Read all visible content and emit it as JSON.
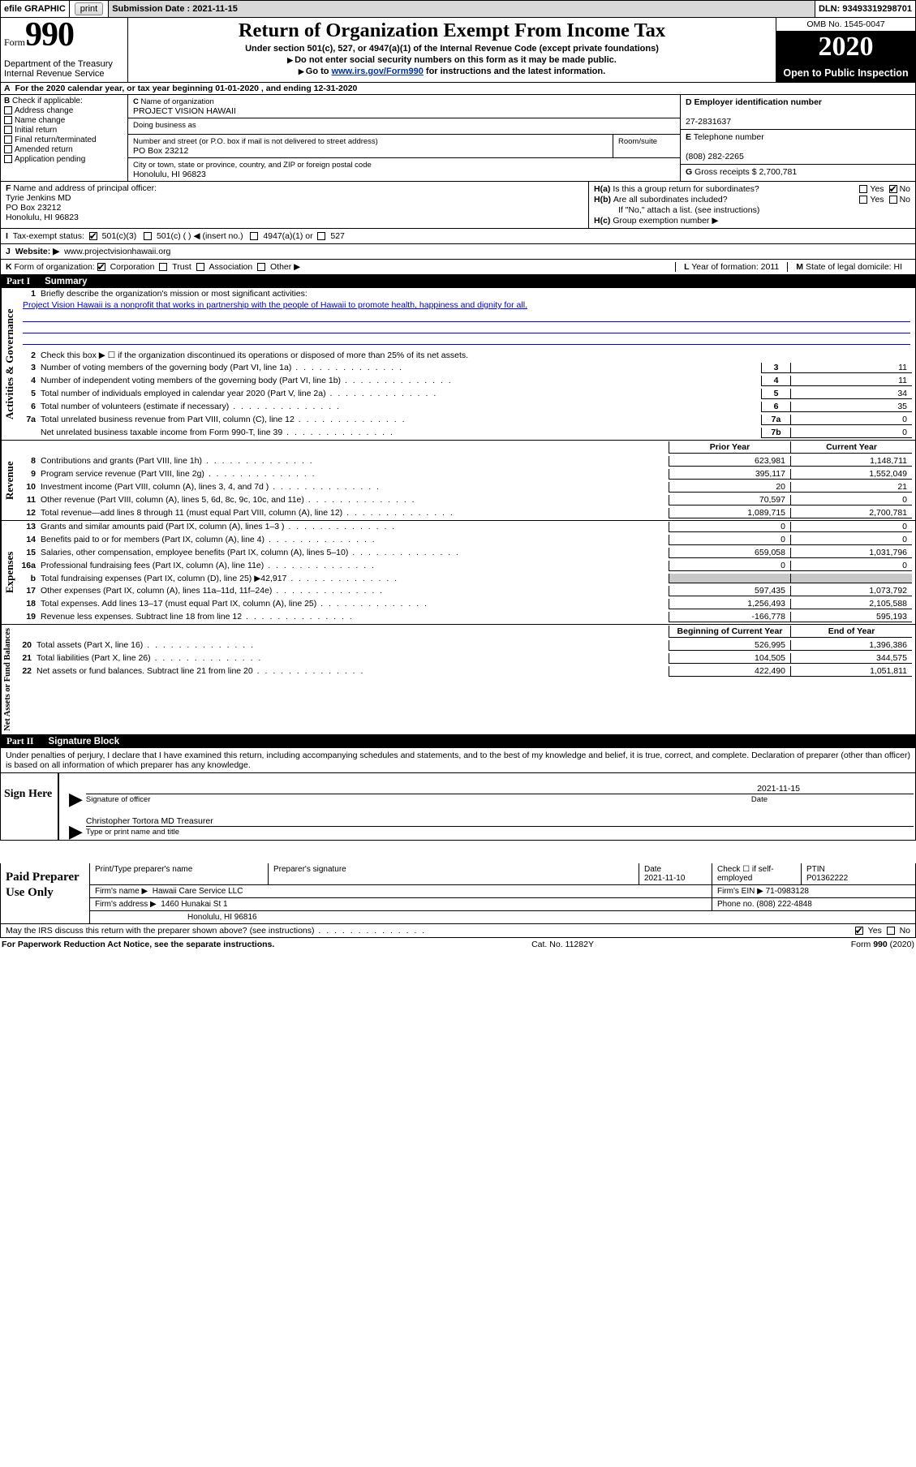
{
  "topbar": {
    "efile_label": "efile GRAPHIC",
    "print_btn": "print",
    "sub_label": "Submission Date :",
    "sub_date": "2021-11-15",
    "dln_label": "DLN:",
    "dln": "93493319298701"
  },
  "header": {
    "form_word": "Form",
    "form_num": "990",
    "dept": "Department of the Treasury\nInternal Revenue Service",
    "title": "Return of Organization Exempt From Income Tax",
    "subtitle": "Under section 501(c), 527, or 4947(a)(1) of the Internal Revenue Code (except private foundations)",
    "instr1": "Do not enter social security numbers on this form as it may be made public.",
    "instr2_pre": "Go to ",
    "instr2_link": "www.irs.gov/Form990",
    "instr2_post": " for instructions and the latest information.",
    "omb": "OMB No. 1545-0047",
    "year": "2020",
    "open": "Open to Public Inspection"
  },
  "lineA": "For the 2020 calendar year, or tax year beginning 01-01-2020   , and ending 12-31-2020",
  "boxB": {
    "label": "Check if applicable:",
    "opts": [
      "Address change",
      "Name change",
      "Initial return",
      "Final return/terminated",
      "Amended return",
      "Application pending"
    ]
  },
  "boxC": {
    "name_label": "Name of organization",
    "name": "PROJECT VISION HAWAII",
    "dba_label": "Doing business as",
    "addr_label": "Number and street (or P.O. box if mail is not delivered to street address)",
    "room_label": "Room/suite",
    "addr": "PO Box 23212",
    "city_label": "City or town, state or province, country, and ZIP or foreign postal code",
    "city": "Honolulu, HI  96823"
  },
  "boxD": {
    "label": "Employer identification number",
    "val": "27-2831637"
  },
  "boxE": {
    "label": "Telephone number",
    "val": "(808) 282-2265"
  },
  "boxG": {
    "label": "Gross receipts $",
    "val": "2,700,781"
  },
  "boxF": {
    "label": "Name and address of principal officer:",
    "name": "Tyrie Jenkins MD",
    "addr": "PO Box 23212",
    "city": "Honolulu, HI  96823"
  },
  "boxH": {
    "a": "Is this a group return for subordinates?",
    "b": "Are all subordinates included?",
    "bnote": "If \"No,\" attach a list. (see instructions)",
    "c": "Group exemption number ▶",
    "yes": "Yes",
    "no": "No"
  },
  "taxexempt": {
    "label": "Tax-exempt status:",
    "o1": "501(c)(3)",
    "o2": "501(c) (  ) ◀ (insert no.)",
    "o3": "4947(a)(1) or",
    "o4": "527"
  },
  "website": {
    "label": "Website: ▶",
    "val": "www.projectvisionhawaii.org"
  },
  "lineK": {
    "label": "Form of organization:",
    "opts": [
      "Corporation",
      "Trust",
      "Association",
      "Other ▶"
    ],
    "L": "Year of formation: 2011",
    "M": "State of legal domicile: HI"
  },
  "partI": {
    "title": "Summary",
    "sections": {
      "gov": "Activities & Governance",
      "rev": "Revenue",
      "exp": "Expenses",
      "net": "Net Assets or Fund Balances"
    },
    "q1": "Briefly describe the organization's mission or most significant activities:",
    "mission": "Project Vision Hawaii is a nonprofit that works in partnership with the people of Hawaii to promote health, happiness and dignity for all.",
    "q2": "Check this box ▶ ☐  if the organization discontinued its operations or disposed of more than 25% of its net assets.",
    "rows_single": [
      {
        "n": "3",
        "t": "Number of voting members of the governing body (Part VI, line 1a)",
        "box": "3",
        "v": "11"
      },
      {
        "n": "4",
        "t": "Number of independent voting members of the governing body (Part VI, line 1b)",
        "box": "4",
        "v": "11"
      },
      {
        "n": "5",
        "t": "Total number of individuals employed in calendar year 2020 (Part V, line 2a)",
        "box": "5",
        "v": "34"
      },
      {
        "n": "6",
        "t": "Total number of volunteers (estimate if necessary)",
        "box": "6",
        "v": "35"
      },
      {
        "n": "7a",
        "t": "Total unrelated business revenue from Part VIII, column (C), line 12",
        "box": "7a",
        "v": "0"
      },
      {
        "n": "",
        "t": "Net unrelated business taxable income from Form 990-T, line 39",
        "box": "7b",
        "v": "0"
      }
    ],
    "hdr_prior": "Prior Year",
    "hdr_curr": "Current Year",
    "rev_rows": [
      {
        "n": "8",
        "t": "Contributions and grants (Part VIII, line 1h)",
        "p": "623,981",
        "c": "1,148,711"
      },
      {
        "n": "9",
        "t": "Program service revenue (Part VIII, line 2g)",
        "p": "395,117",
        "c": "1,552,049"
      },
      {
        "n": "10",
        "t": "Investment income (Part VIII, column (A), lines 3, 4, and 7d )",
        "p": "20",
        "c": "21"
      },
      {
        "n": "11",
        "t": "Other revenue (Part VIII, column (A), lines 5, 6d, 8c, 9c, 10c, and 11e)",
        "p": "70,597",
        "c": "0"
      },
      {
        "n": "12",
        "t": "Total revenue—add lines 8 through 11 (must equal Part VIII, column (A), line 12)",
        "p": "1,089,715",
        "c": "2,700,781"
      }
    ],
    "exp_rows": [
      {
        "n": "13",
        "t": "Grants and similar amounts paid (Part IX, column (A), lines 1–3 )",
        "p": "0",
        "c": "0"
      },
      {
        "n": "14",
        "t": "Benefits paid to or for members (Part IX, column (A), line 4)",
        "p": "0",
        "c": "0"
      },
      {
        "n": "15",
        "t": "Salaries, other compensation, employee benefits (Part IX, column (A), lines 5–10)",
        "p": "659,058",
        "c": "1,031,796"
      },
      {
        "n": "16a",
        "t": "Professional fundraising fees (Part IX, column (A), line 11e)",
        "p": "0",
        "c": "0"
      },
      {
        "n": "b",
        "t": "Total fundraising expenses (Part IX, column (D), line 25) ▶42,917",
        "p": "",
        "c": "",
        "shade": true
      },
      {
        "n": "17",
        "t": "Other expenses (Part IX, column (A), lines 11a–11d, 11f–24e)",
        "p": "597,435",
        "c": "1,073,792"
      },
      {
        "n": "18",
        "t": "Total expenses. Add lines 13–17 (must equal Part IX, column (A), line 25)",
        "p": "1,256,493",
        "c": "2,105,588"
      },
      {
        "n": "19",
        "t": "Revenue less expenses. Subtract line 18 from line 12",
        "p": "-166,778",
        "c": "595,193"
      }
    ],
    "hdr_beg": "Beginning of Current Year",
    "hdr_end": "End of Year",
    "net_rows": [
      {
        "n": "20",
        "t": "Total assets (Part X, line 16)",
        "p": "526,995",
        "c": "1,396,386"
      },
      {
        "n": "21",
        "t": "Total liabilities (Part X, line 26)",
        "p": "104,505",
        "c": "344,575"
      },
      {
        "n": "22",
        "t": "Net assets or fund balances. Subtract line 21 from line 20",
        "p": "422,490",
        "c": "1,051,811"
      }
    ]
  },
  "partII": {
    "title": "Signature Block",
    "decl": "Under penalties of perjury, I declare that I have examined this return, including accompanying schedules and statements, and to the best of my knowledge and belief, it is true, correct, and complete. Declaration of preparer (other than officer) is based on all information of which preparer has any knowledge.",
    "sign_here": "Sign Here",
    "sig_officer": "Signature of officer",
    "sig_date": "2021-11-15",
    "date_lbl": "Date",
    "typed_name": "Christopher Tortora MD  Treasurer",
    "typed_lbl": "Type or print name and title"
  },
  "prep": {
    "title": "Paid Preparer Use Only",
    "h_name": "Print/Type preparer's name",
    "h_sig": "Preparer's signature",
    "h_date": "Date",
    "date": "2021-11-10",
    "h_check": "Check ☐ if self-employed",
    "h_ptin": "PTIN",
    "ptin": "P01362222",
    "firm_name_lbl": "Firm's name    ▶",
    "firm_name": "Hawaii Care Service LLC",
    "firm_ein_lbl": "Firm's EIN ▶",
    "firm_ein": "71-0983128",
    "firm_addr_lbl": "Firm's address ▶",
    "firm_addr1": "1460 Hunakai St 1",
    "firm_addr2": "Honolulu, HI  96816",
    "phone_lbl": "Phone no.",
    "phone": "(808) 222-4848"
  },
  "irs_discuss": "May the IRS discuss this return with the preparer shown above? (see instructions)",
  "footer": {
    "l": "For Paperwork Reduction Act Notice, see the separate instructions.",
    "m": "Cat. No. 11282Y",
    "r": "Form 990 (2020)"
  }
}
